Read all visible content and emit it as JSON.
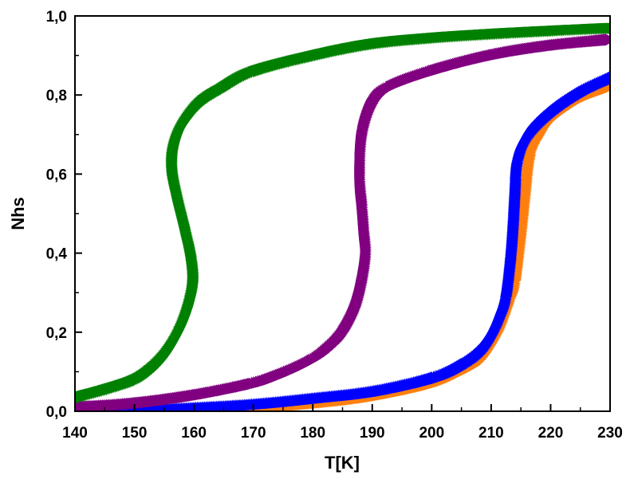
{
  "chart_data": {
    "type": "scatter",
    "title": "",
    "xlabel": "T[K]",
    "ylabel": "Nhs",
    "xlim": [
      140,
      230
    ],
    "ylim": [
      0,
      1
    ],
    "x_ticks": [
      "140",
      "150",
      "160",
      "170",
      "180",
      "190",
      "200",
      "210",
      "220",
      "230"
    ],
    "y_ticks": [
      "0,0",
      "0,2",
      "0,4",
      "0,6",
      "0,8",
      "1,0"
    ],
    "grid": false,
    "legend": "none",
    "series": [
      {
        "color": "#ff7f0e",
        "marker": "triangle-right",
        "points": [
          [
            140,
            0.0
          ],
          [
            150,
            0.0
          ],
          [
            160,
            0.002
          ],
          [
            170,
            0.008
          ],
          [
            180,
            0.02
          ],
          [
            190,
            0.038
          ],
          [
            200,
            0.07
          ],
          [
            205,
            0.1
          ],
          [
            208,
            0.13
          ],
          [
            211,
            0.2
          ],
          [
            213,
            0.28
          ],
          [
            214,
            0.33
          ],
          [
            215,
            0.45
          ],
          [
            215.7,
            0.55
          ],
          [
            216.5,
            0.65
          ],
          [
            218,
            0.7
          ],
          [
            220,
            0.74
          ],
          [
            225,
            0.79
          ],
          [
            230,
            0.82
          ]
        ]
      },
      {
        "color": "#0000ff",
        "marker": "triangle-up",
        "points": [
          [
            140,
            0.0
          ],
          [
            150,
            0.002
          ],
          [
            160,
            0.008
          ],
          [
            170,
            0.017
          ],
          [
            180,
            0.032
          ],
          [
            190,
            0.05
          ],
          [
            200,
            0.085
          ],
          [
            205,
            0.12
          ],
          [
            208,
            0.155
          ],
          [
            210,
            0.2
          ],
          [
            211.5,
            0.25
          ],
          [
            212.5,
            0.3
          ],
          [
            213.3,
            0.4
          ],
          [
            213.7,
            0.48
          ],
          [
            214,
            0.56
          ],
          [
            214.4,
            0.64
          ],
          [
            216,
            0.7
          ],
          [
            220,
            0.76
          ],
          [
            225,
            0.81
          ],
          [
            230,
            0.845
          ]
        ]
      },
      {
        "color": "#800080",
        "marker": "triangle-right",
        "points": [
          [
            140,
            0.01
          ],
          [
            150,
            0.02
          ],
          [
            160,
            0.04
          ],
          [
            170,
            0.07
          ],
          [
            175,
            0.095
          ],
          [
            180,
            0.13
          ],
          [
            183,
            0.165
          ],
          [
            185,
            0.2
          ],
          [
            187,
            0.26
          ],
          [
            188.2,
            0.33
          ],
          [
            188.8,
            0.4
          ],
          [
            188.5,
            0.46
          ],
          [
            188.2,
            0.52
          ],
          [
            187.8,
            0.6
          ],
          [
            188.2,
            0.7
          ],
          [
            190,
            0.78
          ],
          [
            193,
            0.82
          ],
          [
            200,
            0.86
          ],
          [
            210,
            0.9
          ],
          [
            220,
            0.925
          ],
          [
            230,
            0.94
          ]
        ]
      },
      {
        "color": "#008000",
        "marker": "triangle-down",
        "points": [
          [
            140,
            0.035
          ],
          [
            145,
            0.055
          ],
          [
            150,
            0.08
          ],
          [
            153,
            0.11
          ],
          [
            155.5,
            0.15
          ],
          [
            157.5,
            0.2
          ],
          [
            159,
            0.26
          ],
          [
            159.8,
            0.32
          ],
          [
            159.5,
            0.38
          ],
          [
            158.5,
            0.45
          ],
          [
            157.2,
            0.53
          ],
          [
            156.3,
            0.6
          ],
          [
            156.5,
            0.66
          ],
          [
            158,
            0.72
          ],
          [
            161,
            0.78
          ],
          [
            165,
            0.82
          ],
          [
            170,
            0.86
          ],
          [
            180,
            0.9
          ],
          [
            190,
            0.93
          ],
          [
            200,
            0.945
          ],
          [
            210,
            0.955
          ],
          [
            220,
            0.963
          ],
          [
            230,
            0.97
          ]
        ]
      }
    ]
  }
}
